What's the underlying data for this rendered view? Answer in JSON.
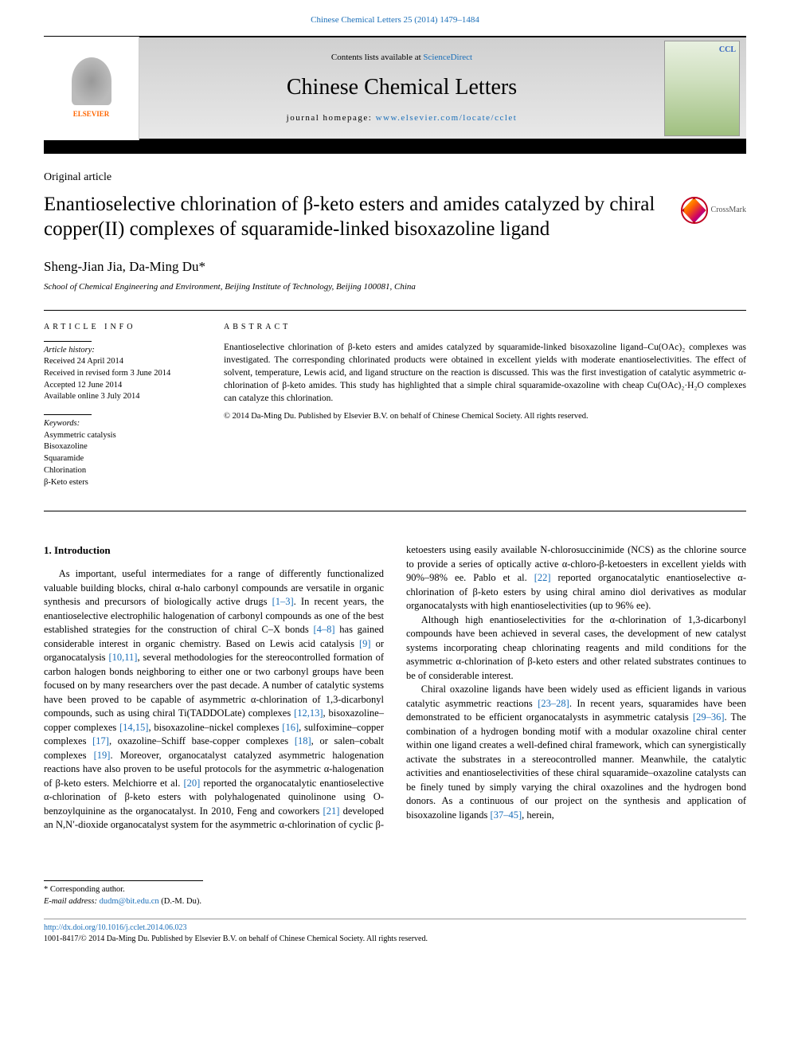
{
  "top_link": {
    "prefix": "",
    "journal": "Chinese Chemical Letters 25 (2014) 1479–1484"
  },
  "header": {
    "elsevier_text": "ELSEVIER",
    "contents_prefix": "Contents lists available at ",
    "contents_link": "ScienceDirect",
    "journal_name": "Chinese Chemical Letters",
    "homepage_prefix": "journal homepage: ",
    "homepage_url": "www.elsevier.com/locate/cclet",
    "cover_badge": "CCL"
  },
  "article": {
    "type": "Original article",
    "title": "Enantioselective chlorination of β-keto esters and amides catalyzed by chiral copper(II) complexes of squaramide-linked bisoxazoline ligand",
    "crossmark": "CrossMark",
    "authors": "Sheng-Jian Jia, Da-Ming Du",
    "author_mark": "*",
    "affiliation": "School of Chemical Engineering and Environment, Beijing Institute of Technology, Beijing 100081, China"
  },
  "info": {
    "heading": "ARTICLE INFO",
    "history_label": "Article history:",
    "received": "Received 24 April 2014",
    "revised": "Received in revised form 3 June 2014",
    "accepted": "Accepted 12 June 2014",
    "online": "Available online 3 July 2014",
    "keywords_label": "Keywords:",
    "kw1": "Asymmetric catalysis",
    "kw2": "Bisoxazoline",
    "kw3": "Squaramide",
    "kw4": "Chlorination",
    "kw5": "β-Keto esters"
  },
  "abstract": {
    "heading": "ABSTRACT",
    "text": "Enantioselective chlorination of β-keto esters and amides catalyzed by squaramide-linked bisoxazoline ligand–Cu(OAc)₂ complexes was investigated. The corresponding chlorinated products were obtained in excellent yields with moderate enantioselectivities. The effect of solvent, temperature, Lewis acid, and ligand structure on the reaction is discussed. This was the first investigation of catalytic asymmetric α-chlorination of β-keto amides. This study has highlighted that a simple chiral squaramide-oxazoline with cheap Cu(OAc)₂·H₂O complexes can catalyze this chlorination.",
    "copyright": "© 2014 Da-Ming Du. Published by Elsevier B.V. on behalf of Chinese Chemical Society. All rights reserved."
  },
  "body": {
    "section_heading": "1. Introduction",
    "p1a": "As important, useful intermediates for a range of differently functionalized valuable building blocks, chiral α-halo carbonyl compounds are versatile in organic synthesis and precursors of biologically active drugs ",
    "r1": "[1–3]",
    "p1b": ". In recent years, the enantioselective electrophilic halogenation of carbonyl compounds as one of the best established strategies for the construction of chiral C–X bonds ",
    "r2": "[4–8]",
    "p1c": " has gained considerable interest in organic chemistry. Based on Lewis acid catalysis ",
    "r3": "[9]",
    "p1d": " or organocatalysis ",
    "r4": "[10,11]",
    "p1e": ", several methodologies for the stereocontrolled formation of carbon halogen bonds neighboring to either one or two carbonyl groups have been focused on by many researchers over the past decade. A number of catalytic systems have been proved to be capable of asymmetric α-chlorination of 1,3-dicarbonyl compounds, such as using chiral Ti(TADDOLate) complexes ",
    "r5": "[12,13]",
    "p1f": ", bisoxazoline–copper complexes ",
    "r6": "[14,15]",
    "p1g": ", bisoxazoline–nickel complexes ",
    "r7": "[16]",
    "p1h": ", sulfoximine–copper complexes ",
    "r8": "[17]",
    "p1i": ", oxazoline–Schiff base-copper complexes ",
    "r9": "[18]",
    "p1j": ", or salen–cobalt complexes ",
    "r10": "[19]",
    "p1k": ". Moreover, organocatalyst catalyzed asymmetric halogenation reactions have also proven to be useful protocols for the asymmetric α-halogenation of β-keto esters. Melchiorre et al. ",
    "r11": "[20]",
    "p1l": " reported the organocatalytic enantioselective α-chlorination of β-keto esters with polyhalogenated quinolinone ",
    "p2a": "using O-benzoylquinine as the organocatalyst. In 2010, Feng and coworkers ",
    "r12": "[21]",
    "p2b": " developed an N,N′-dioxide organocatalyst system for the asymmetric α-chlorination of cyclic β-ketoesters using easily available N-chlorosuccinimide (NCS) as the chlorine source to provide a series of optically active α-chloro-β-ketoesters in excellent yields with 90%–98% ee. Pablo et al. ",
    "r13": "[22]",
    "p2c": " reported organocatalytic enantioselective α-chlorination of β-keto esters by using chiral amino diol derivatives as modular organocatalysts with high enantioselectivities (up to 96% ee).",
    "p3": "Although high enantioselectivities for the α-chlorination of 1,3-dicarbonyl compounds have been achieved in several cases, the development of new catalyst systems incorporating cheap chlorinating reagents and mild conditions for the asymmetric α-chlorination of β-keto esters and other related substrates continues to be of considerable interest.",
    "p4a": "Chiral oxazoline ligands have been widely used as efficient ligands in various catalytic asymmetric reactions ",
    "r14": "[23–28]",
    "p4b": ". In recent years, squaramides have been demonstrated to be efficient organocatalysts in asymmetric catalysis ",
    "r15": "[29–36]",
    "p4c": ". The combination of a hydrogen bonding motif with a modular oxazoline chiral center within one ligand creates a well-defined chiral framework, which can synergistically activate the substrates in a stereocontrolled manner. Meanwhile, the catalytic activities and enantioselectivities of these chiral squaramide–oxazoline catalysts can be finely tuned by simply varying the chiral oxazolines and the hydrogen bond donors. As a continuous of our project on the synthesis and application of bisoxazoline ligands ",
    "r16": "[37–45]",
    "p4d": ", herein,"
  },
  "footer": {
    "corr_label": "* Corresponding author.",
    "email_label": "E-mail address: ",
    "email": "dudm@bit.edu.cn",
    "email_name": " (D.-M. Du).",
    "doi": "http://dx.doi.org/10.1016/j.cclet.2014.06.023",
    "issn_line": "1001-8417/© 2014 Da-Ming Du. Published by Elsevier B.V. on behalf of Chinese Chemical Society. All rights reserved."
  },
  "colors": {
    "link": "#1a6eb8",
    "elsevier_orange": "#ff6600",
    "crossmark_ring": "#c00020"
  }
}
